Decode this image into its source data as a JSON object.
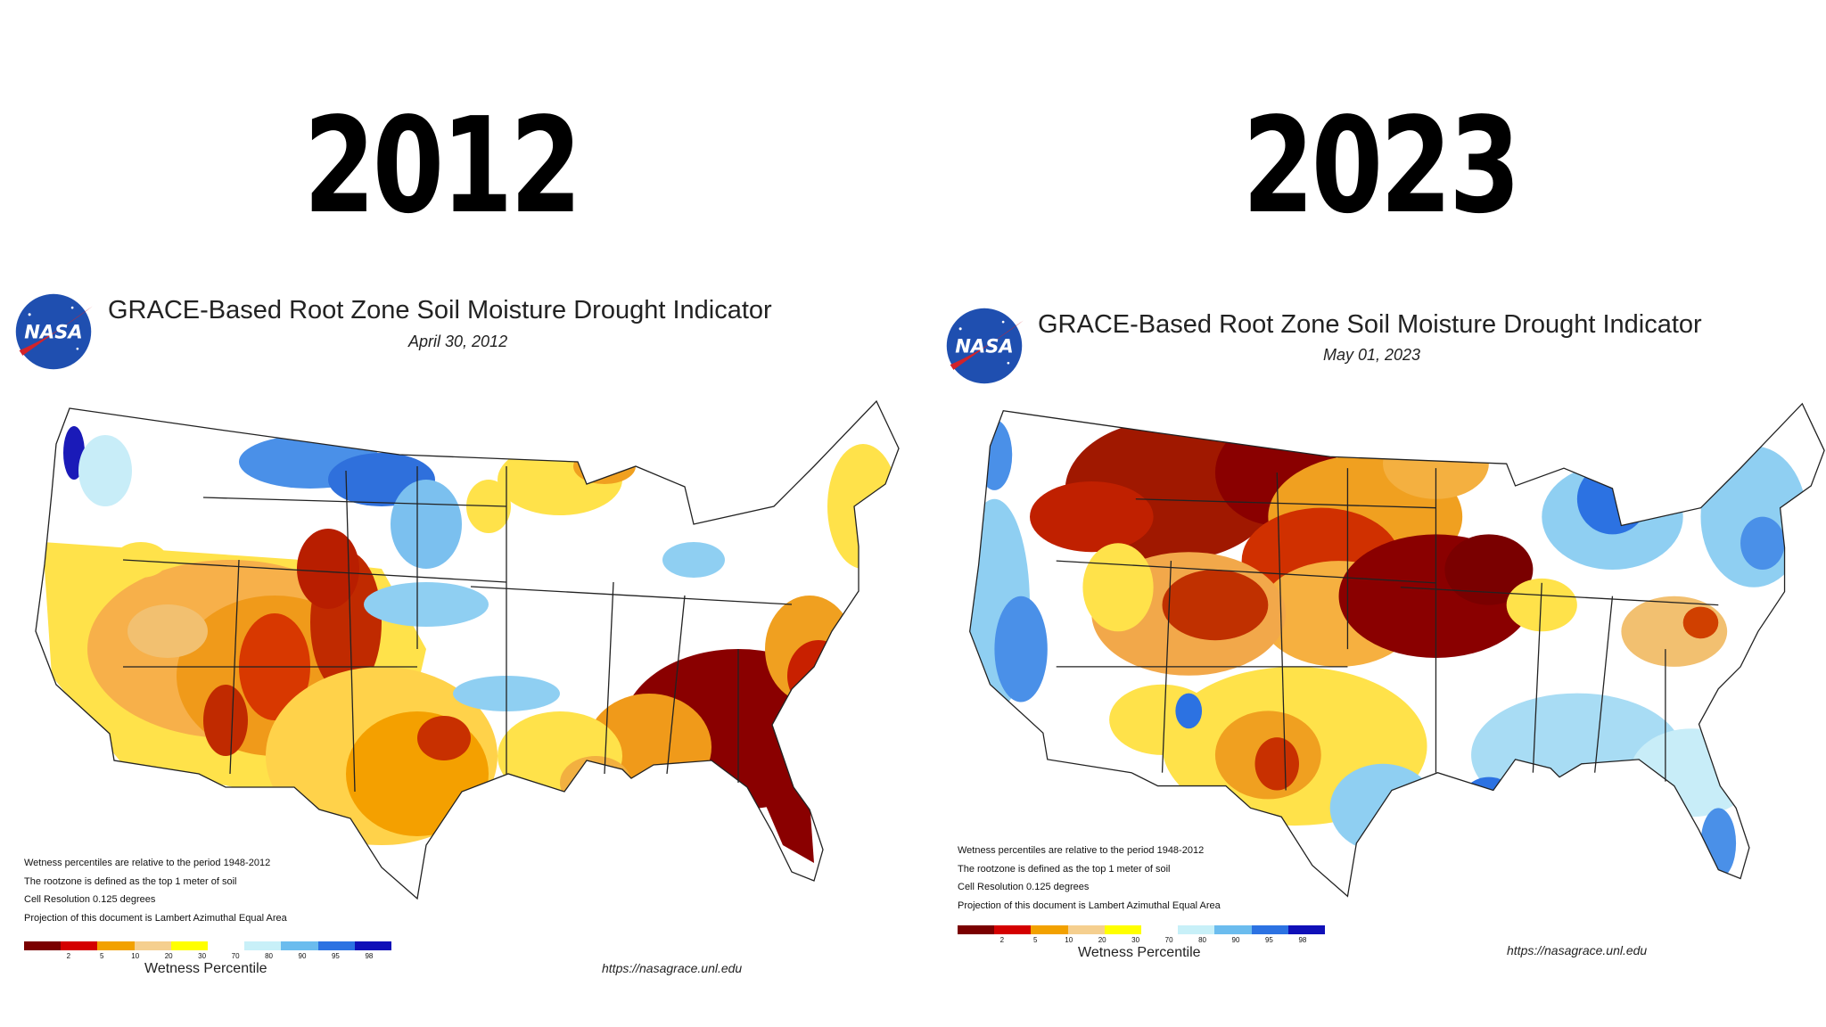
{
  "years": {
    "left": "2012",
    "right": "2023"
  },
  "panels": [
    {
      "title": "GRACE-Based Root Zone Soil  Moisture Drought Indicator",
      "date": "April 30, 2012",
      "logo_text": "NASA",
      "notes": [
        "Wetness percentiles are relative to the period 1948-2012",
        "The rootzone is defined as the top 1 meter of soil",
        "Cell Resolution 0.125 degrees",
        "Projection of this document is Lambert Azimuthal Equal Area"
      ],
      "legend_label": "Wetness Percentile",
      "url": "https://nasagrace.unl.edu"
    },
    {
      "title": "GRACE-Based Root Zone Soil  Moisture Drought Indicator",
      "date": "May 01, 2023",
      "logo_text": "NASA",
      "notes": [
        "Wetness percentiles are relative to the period 1948-2012",
        "The rootzone is defined as the top 1 meter of soil",
        "Cell Resolution 0.125 degrees",
        "Projection of this document is Lambert Azimuthal Equal Area"
      ],
      "legend_label": "Wetness Percentile",
      "url": "https://nasagrace.unl.edu"
    }
  ],
  "legend": {
    "ticks": [
      "2",
      "5",
      "10",
      "20",
      "30",
      "70",
      "80",
      "90",
      "95",
      "98"
    ],
    "colors": [
      "#7a0000",
      "#d40000",
      "#f2a100",
      "#f5cf8f",
      "#ffff00",
      "#ffffff",
      "#c8f0f8",
      "#6bbcee",
      "#2c72e2",
      "#1010b8"
    ]
  }
}
